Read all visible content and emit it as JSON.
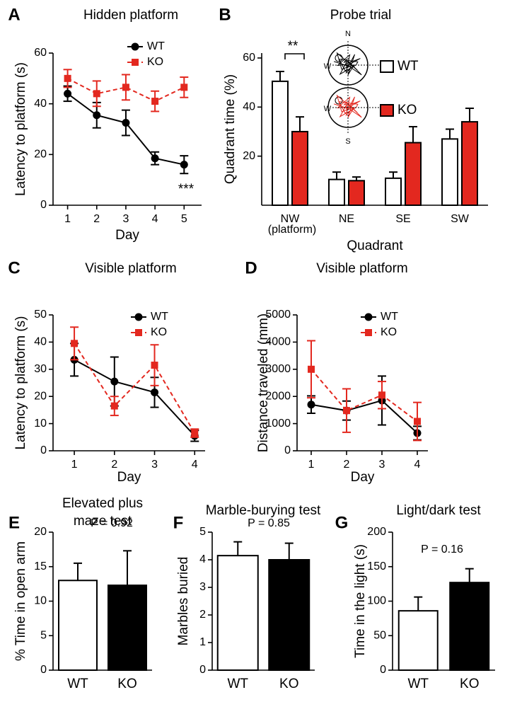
{
  "chart_data": [
    {
      "type": "line",
      "panel": "A",
      "title": "Hidden platform",
      "xlabel": "Day",
      "ylabel": "Latency to platform (s)",
      "x": [
        1,
        2,
        3,
        4,
        5
      ],
      "xlim": [
        0.5,
        5.6
      ],
      "xticks": [
        1,
        2,
        3,
        4,
        5
      ],
      "ylim": [
        0,
        60
      ],
      "yticks": [
        0,
        20,
        40,
        60
      ],
      "series": [
        {
          "name": "WT",
          "color": "#000000",
          "marker": "circle",
          "linestyle": "solid",
          "values": [
            44,
            35.5,
            32.5,
            18.5,
            16
          ],
          "errors": [
            3,
            5,
            5,
            2.5,
            3.5
          ]
        },
        {
          "name": "KO",
          "color": "#e3281f",
          "marker": "square",
          "linestyle": "dashed",
          "values": [
            50,
            44,
            46.5,
            41,
            46.5
          ],
          "errors": [
            3.5,
            5,
            5,
            4,
            4
          ]
        }
      ],
      "annotations": [
        {
          "text": "***"
        }
      ]
    },
    {
      "type": "bar",
      "panel": "B",
      "title": "Probe trial",
      "xlabel": "Quadrant",
      "ylabel": "Quadrant time (%)",
      "categories": [
        "NW",
        "NE",
        "SE",
        "SW"
      ],
      "ylim": [
        0,
        62
      ],
      "yticks": [
        20,
        40,
        60
      ],
      "series": [
        {
          "name": "WT",
          "color": "#ffffff",
          "values": [
            50.5,
            10.5,
            11,
            27
          ],
          "errors": [
            4,
            3,
            2.5,
            4
          ]
        },
        {
          "name": "KO",
          "color": "#e3281f",
          "values": [
            30,
            10,
            25.5,
            34
          ],
          "errors": [
            6,
            1.5,
            6.5,
            5.5
          ]
        }
      ],
      "annotations": [
        {
          "text": "(platform)"
        },
        {
          "text": "**"
        }
      ],
      "inset_labels": [
        "N",
        "W",
        "W",
        "S"
      ]
    },
    {
      "type": "line",
      "panel": "C",
      "title": "Visible platform",
      "xlabel": "Day",
      "ylabel": "Latency to platform (s)",
      "x": [
        1,
        2,
        3,
        4
      ],
      "xlim": [
        0.47,
        4.26
      ],
      "xticks": [
        1,
        2,
        3,
        4
      ],
      "ylim": [
        0,
        50
      ],
      "yticks": [
        0,
        10,
        20,
        30,
        40,
        50
      ],
      "series": [
        {
          "name": "WT",
          "color": "#000000",
          "marker": "circle",
          "linestyle": "solid",
          "values": [
            33.5,
            25.5,
            21.5,
            5.5
          ],
          "errors": [
            6,
            9,
            5.5,
            2
          ]
        },
        {
          "name": "KO",
          "color": "#e3281f",
          "marker": "square",
          "linestyle": "dashed",
          "values": [
            39.5,
            16.5,
            31.5,
            6.5
          ],
          "errors": [
            6,
            3.5,
            7.5,
            1.5
          ]
        }
      ]
    },
    {
      "type": "line",
      "panel": "D",
      "title": "Visible platform",
      "xlabel": "Day",
      "ylabel": "Distance traveled (mm)",
      "x": [
        1,
        2,
        3,
        4
      ],
      "xlim": [
        0.6,
        4.3
      ],
      "xticks": [
        1,
        2,
        3,
        4
      ],
      "ylim": [
        0,
        5000
      ],
      "yticks": [
        0,
        1000,
        2000,
        3000,
        4000,
        5000
      ],
      "series": [
        {
          "name": "WT",
          "color": "#000000",
          "marker": "circle",
          "linestyle": "solid",
          "values": [
            1700,
            1480,
            1850,
            650
          ],
          "errors": [
            320,
            350,
            900,
            250
          ]
        },
        {
          "name": "KO",
          "color": "#e3281f",
          "marker": "square",
          "linestyle": "dashed",
          "values": [
            3000,
            1480,
            2050,
            1080
          ],
          "errors": [
            1050,
            800,
            500,
            700
          ]
        }
      ]
    },
    {
      "type": "bar",
      "panel": "E",
      "title": [
        "Elevated plus",
        "maze test"
      ],
      "ylabel": "% Time in open arm",
      "categories": [
        "WT",
        "KO"
      ],
      "values": [
        13,
        12.3
      ],
      "errors": [
        2.5,
        5
      ],
      "colors": [
        "#ffffff",
        "#000000"
      ],
      "ylim": [
        0,
        20
      ],
      "yticks": [
        0,
        5,
        10,
        15,
        20
      ],
      "annotations": [
        {
          "text": "P = 0.92"
        }
      ]
    },
    {
      "type": "bar",
      "panel": "F",
      "title": "Marble-burying test",
      "ylabel": "Marbles buried",
      "categories": [
        "WT",
        "KO"
      ],
      "values": [
        4.15,
        4.0
      ],
      "errors": [
        0.5,
        0.6
      ],
      "colors": [
        "#ffffff",
        "#000000"
      ],
      "ylim": [
        0,
        5
      ],
      "yticks": [
        0,
        1,
        2,
        3,
        4,
        5
      ],
      "annotations": [
        {
          "text": "P = 0.85"
        }
      ]
    },
    {
      "type": "bar",
      "panel": "G",
      "title": "Light/dark test",
      "ylabel": "Time in the light (s)",
      "categories": [
        "WT",
        "KO"
      ],
      "values": [
        86,
        127
      ],
      "errors": [
        20,
        20
      ],
      "colors": [
        "#ffffff",
        "#000000"
      ],
      "ylim": [
        0,
        200
      ],
      "yticks": [
        0,
        50,
        100,
        150,
        200
      ],
      "annotations": [
        {
          "text": "P = 0.16"
        }
      ]
    }
  ]
}
